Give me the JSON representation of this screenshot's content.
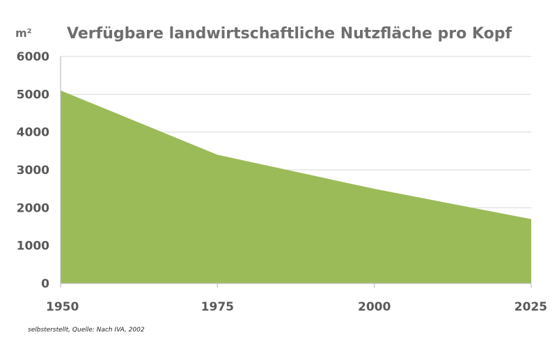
{
  "chart_data": {
    "type": "area",
    "title": "Verfügbare landwirtschaftliche Nutzfläche pro Kopf",
    "ylabel": "m²",
    "xlabel": "",
    "x": [
      1950,
      1975,
      2000,
      2025
    ],
    "x_tick_labels": [
      "1950",
      "1975",
      "2000",
      "2025"
    ],
    "y_ticks": [
      0,
      1000,
      2000,
      3000,
      4000,
      5000,
      6000
    ],
    "y_tick_labels": [
      "0",
      "1000",
      "2000",
      "3000",
      "4000",
      "5000",
      "6000"
    ],
    "ylim": [
      0,
      6000
    ],
    "xlim": [
      1950,
      2025
    ],
    "points": [
      {
        "x": 1950,
        "y": 5100
      },
      {
        "x": 1975,
        "y": 3400
      },
      {
        "x": 2000,
        "y": 2500
      },
      {
        "x": 2025,
        "y": 1700
      }
    ],
    "fill_color": "#9bbb59",
    "grid": true,
    "legend": "none"
  },
  "source_note": "selbsterstellt, Quelle: Nach IVA, 2002"
}
